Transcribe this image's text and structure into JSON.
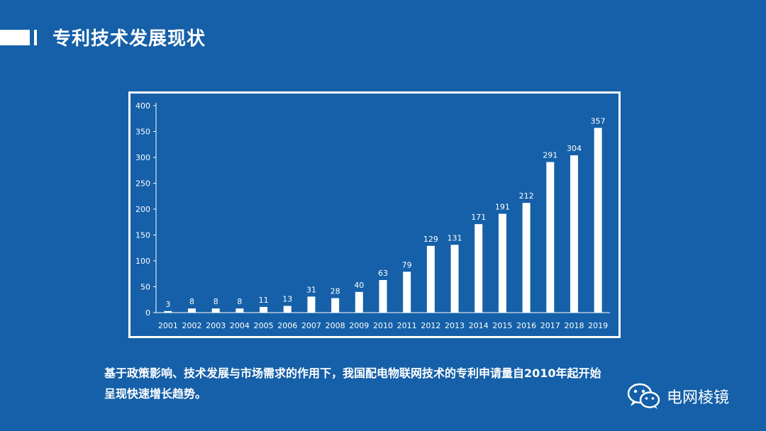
{
  "header": {
    "title": "专利技术发展现状"
  },
  "caption": {
    "line1": "基于政策影响、技术发展与市场需求的作用下，我国配电物联网技术的专利申请量自2010年起开始",
    "line2": "呈现快速增长趋势。"
  },
  "brand": {
    "name": "电网棱镜",
    "icon": "wechat-icon"
  },
  "colors": {
    "background": "#1560a8",
    "bars": "#ffffff",
    "text": "#ffffff"
  },
  "chart_data": {
    "type": "bar",
    "categories": [
      "2001",
      "2002",
      "2003",
      "2004",
      "2005",
      "2006",
      "2007",
      "2008",
      "2009",
      "2010",
      "2011",
      "2012",
      "2013",
      "2014",
      "2015",
      "2016",
      "2017",
      "2018",
      "2019"
    ],
    "values": [
      3,
      8,
      8,
      8,
      11,
      13,
      31,
      28,
      40,
      63,
      79,
      129,
      131,
      171,
      191,
      212,
      291,
      304,
      357
    ],
    "ylim": [
      0,
      400
    ],
    "yticks": [
      0,
      50,
      100,
      150,
      200,
      250,
      300,
      350,
      400
    ],
    "title": "",
    "xlabel": "",
    "ylabel": "",
    "grid": false,
    "data_labels": true
  }
}
